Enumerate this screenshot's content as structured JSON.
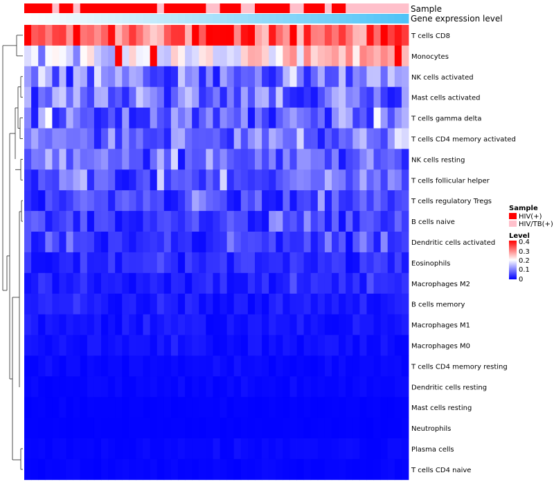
{
  "chart_data": {
    "type": "heatmap",
    "title": "",
    "annotation_labels": {
      "sample": "Sample",
      "gene": "Gene expression level"
    },
    "n_columns": 55,
    "rows": [
      "T cells CD8",
      "Monocytes",
      "NK cells activated",
      "Mast cells activated",
      "T cells gamma delta",
      "T cells CD4 memory activated",
      "NK cells resting",
      "T cells follicular helper",
      "T cells regulatory  Tregs",
      "B cells naive",
      "Dendritic cells activated",
      "Eosinophils",
      "Macrophages M2",
      "B cells memory",
      "Macrophages M1",
      "Macrophages M0",
      "T cells CD4 memory resting",
      "Dendritic cells resting",
      "Mast cells resting",
      "Neutrophils",
      "Plasma cells",
      "T cells CD4 naive"
    ],
    "row_base": [
      0.32,
      0.2,
      0.09,
      0.09,
      0.08,
      0.08,
      0.065,
      0.065,
      0.05,
      0.045,
      0.04,
      0.03,
      0.025,
      0.02,
      0.015,
      0.012,
      0.006,
      0.005,
      0.002,
      0.0015,
      0.005,
      0.003
    ],
    "sample_annotation": [
      0,
      0,
      0,
      0,
      1,
      0,
      0,
      1,
      0,
      0,
      0,
      0,
      0,
      0,
      0,
      0,
      0,
      0,
      0,
      1,
      0,
      0,
      0,
      0,
      0,
      0,
      1,
      1,
      0,
      0,
      0,
      1,
      1,
      0,
      0,
      0,
      0,
      0,
      1,
      1,
      0,
      0,
      0,
      1,
      0,
      0,
      1,
      1,
      1,
      1,
      1,
      1,
      1,
      1,
      1
    ],
    "gene_expression_gradient": {
      "from": "#ffffff",
      "to": "#4fc3f7"
    },
    "legend": {
      "sample_title": "Sample",
      "sample_levels": [
        {
          "label": "HIV(+)",
          "color": "#ff0000"
        },
        {
          "label": "HIV/TB(+)",
          "color": "#ffc0cb"
        }
      ],
      "level_title": "Level",
      "level_ticks": [
        "0.4",
        "0.3",
        "0.2",
        "0.1",
        "0"
      ],
      "level_range": [
        0,
        0.4
      ],
      "colors": {
        "low": "#0000ff",
        "mid": "#ffffff",
        "high": "#ff0000"
      }
    }
  }
}
